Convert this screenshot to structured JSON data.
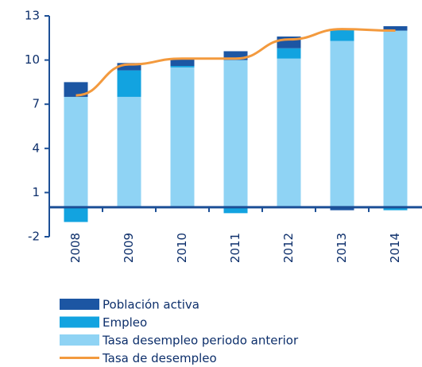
{
  "chart_data": {
    "type": "bar",
    "categories": [
      "2008",
      "2009",
      "2010",
      "2011",
      "2012",
      "2013",
      "2014"
    ],
    "series": [
      {
        "name": "Tasa desempleo periodo anterior",
        "color": "#8fd3f4",
        "values": [
          7.5,
          7.5,
          9.5,
          10.0,
          10.1,
          11.3,
          12.0
        ]
      },
      {
        "name": "Empleo",
        "color": "#12a3e0",
        "values": [
          -1.0,
          1.8,
          0.1,
          -0.4,
          0.7,
          0.8,
          -0.2
        ]
      },
      {
        "name": "Población activa",
        "color": "#1c56a3",
        "values": [
          1.0,
          0.5,
          0.5,
          0.6,
          0.8,
          -0.2,
          0.3
        ]
      },
      {
        "name": "Tasa de desempleo",
        "type": "line",
        "color": "#f39a3e",
        "values": [
          7.6,
          9.7,
          10.1,
          10.1,
          11.4,
          12.1,
          12.0
        ]
      }
    ],
    "legend_order": [
      2,
      1,
      0,
      3
    ],
    "ylim": [
      -2,
      13
    ],
    "yticks": [
      -2,
      1,
      4,
      7,
      10,
      13
    ],
    "grid": false
  }
}
